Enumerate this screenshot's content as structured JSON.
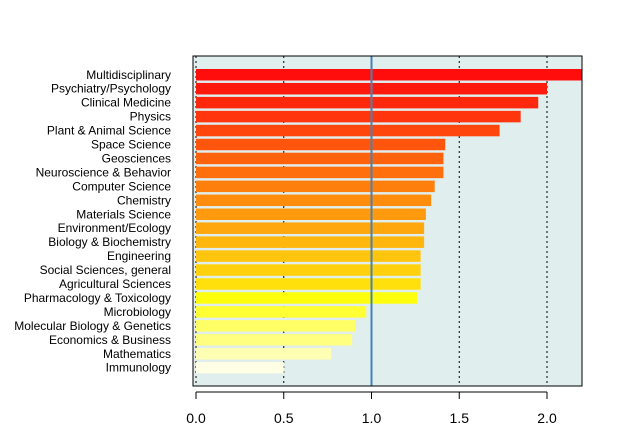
{
  "chart_data": {
    "type": "bar",
    "orientation": "horizontal",
    "categories": [
      "Multidisciplinary",
      "Psychiatry/Psychology",
      "Clinical Medicine",
      "Physics",
      "Plant & Animal Science",
      "Space Science",
      "Geosciences",
      "Neuroscience & Behavior",
      "Computer Science",
      "Chemistry",
      "Materials Science",
      "Environment/Ecology",
      "Biology & Biochemistry",
      "Engineering",
      "Social Sciences, general",
      "Agricultural Sciences",
      "Pharmacology & Toxicology",
      "Microbiology",
      "Molecular Biology & Genetics",
      "Economics & Business",
      "Mathematics",
      "Immunology"
    ],
    "values": [
      2.2,
      2.0,
      1.95,
      1.85,
      1.73,
      1.42,
      1.41,
      1.41,
      1.36,
      1.34,
      1.31,
      1.3,
      1.3,
      1.28,
      1.28,
      1.28,
      1.26,
      0.97,
      0.91,
      0.89,
      0.77,
      0.5
    ],
    "colors": [
      "#ff0d0d",
      "#ff1a0d",
      "#ff280d",
      "#ff360d",
      "#ff460d",
      "#ff550d",
      "#ff620d",
      "#ff700d",
      "#ff7f0d",
      "#ff8c0d",
      "#ff990d",
      "#ffa70d",
      "#ffb60d",
      "#ffc40d",
      "#ffd10d",
      "#ffe00d",
      "#ffff0d",
      "#ffff33",
      "#ffff66",
      "#ffff80",
      "#ffffb3",
      "#ffffe6"
    ],
    "title": "",
    "xlabel": "",
    "ylabel": "",
    "xlim": [
      0,
      2.2
    ],
    "xticks": [
      0.0,
      0.5,
      1.0,
      1.5,
      2.0
    ],
    "xtick_labels": [
      "0.0",
      "0.5",
      "1.0",
      "1.5",
      "2.0"
    ],
    "gridlines_dotted": [
      0,
      0.5,
      1.5,
      2.0
    ],
    "reference_line": 1.0,
    "reference_line_color": "#4682b4",
    "plot_background": "#e0eeee",
    "grid": true,
    "legend": "none"
  }
}
